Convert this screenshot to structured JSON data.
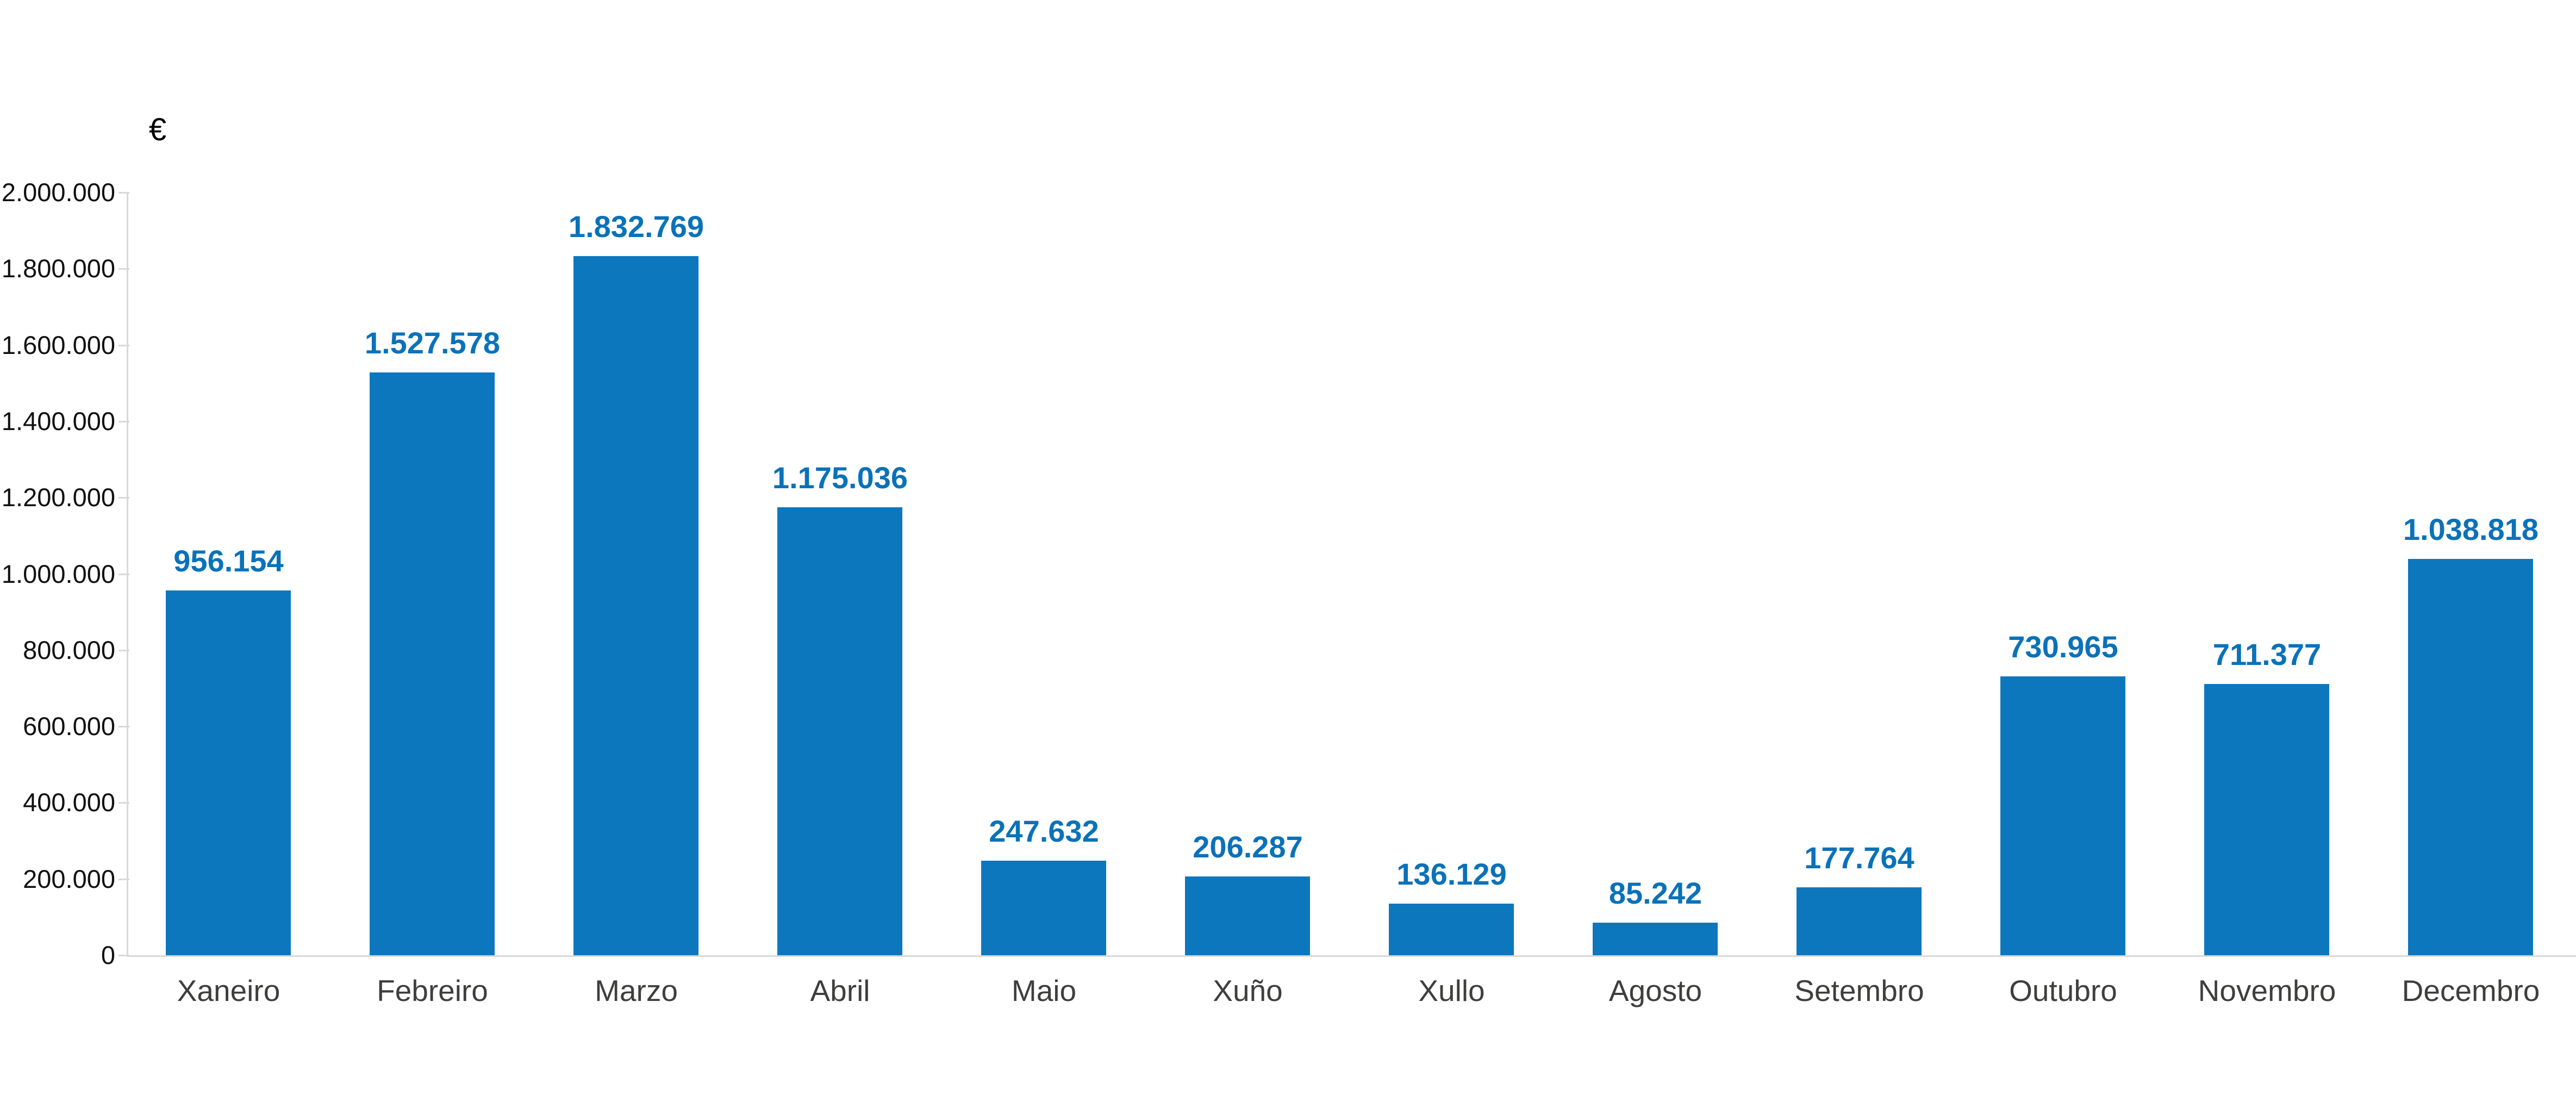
{
  "page": {
    "background": "#ffffff"
  },
  "unit_label": "€",
  "chart_data": {
    "type": "bar",
    "title": "",
    "xlabel": "",
    "ylabel": "€",
    "categories": [
      "Xaneiro",
      "Febreiro",
      "Marzo",
      "Abril",
      "Maio",
      "Xuño",
      "Xullo",
      "Agosto",
      "Setembro",
      "Outubro",
      "Novembro",
      "Decembro"
    ],
    "values": [
      956154,
      1527578,
      1832769,
      1175036,
      247632,
      206287,
      136129,
      85242,
      177764,
      730965,
      711377,
      1038818
    ],
    "value_labels": [
      "956.154",
      "1.527.578",
      "1.832.769",
      "1.175.036",
      "247.632",
      "206.287",
      "136.129",
      "85.242",
      "177.764",
      "730.965",
      "711.377",
      "1.038.818"
    ],
    "ylim": [
      0,
      2000000
    ],
    "ytick_step": 200000,
    "ytick_labels": [
      "2.000.000",
      "1.800.000",
      "1.600.000",
      "1.400.000",
      "1.200.000",
      "1.000.000",
      "800.000",
      "600.000",
      "400.000",
      "200.000",
      "0"
    ],
    "grid": false,
    "legend_position": "none",
    "colors": {
      "bar": "#0d77be",
      "value_label": "#0a72b9",
      "axis": "#d9d9d9",
      "ytick_label": "#111111",
      "category_label": "#3e3e3d"
    }
  }
}
